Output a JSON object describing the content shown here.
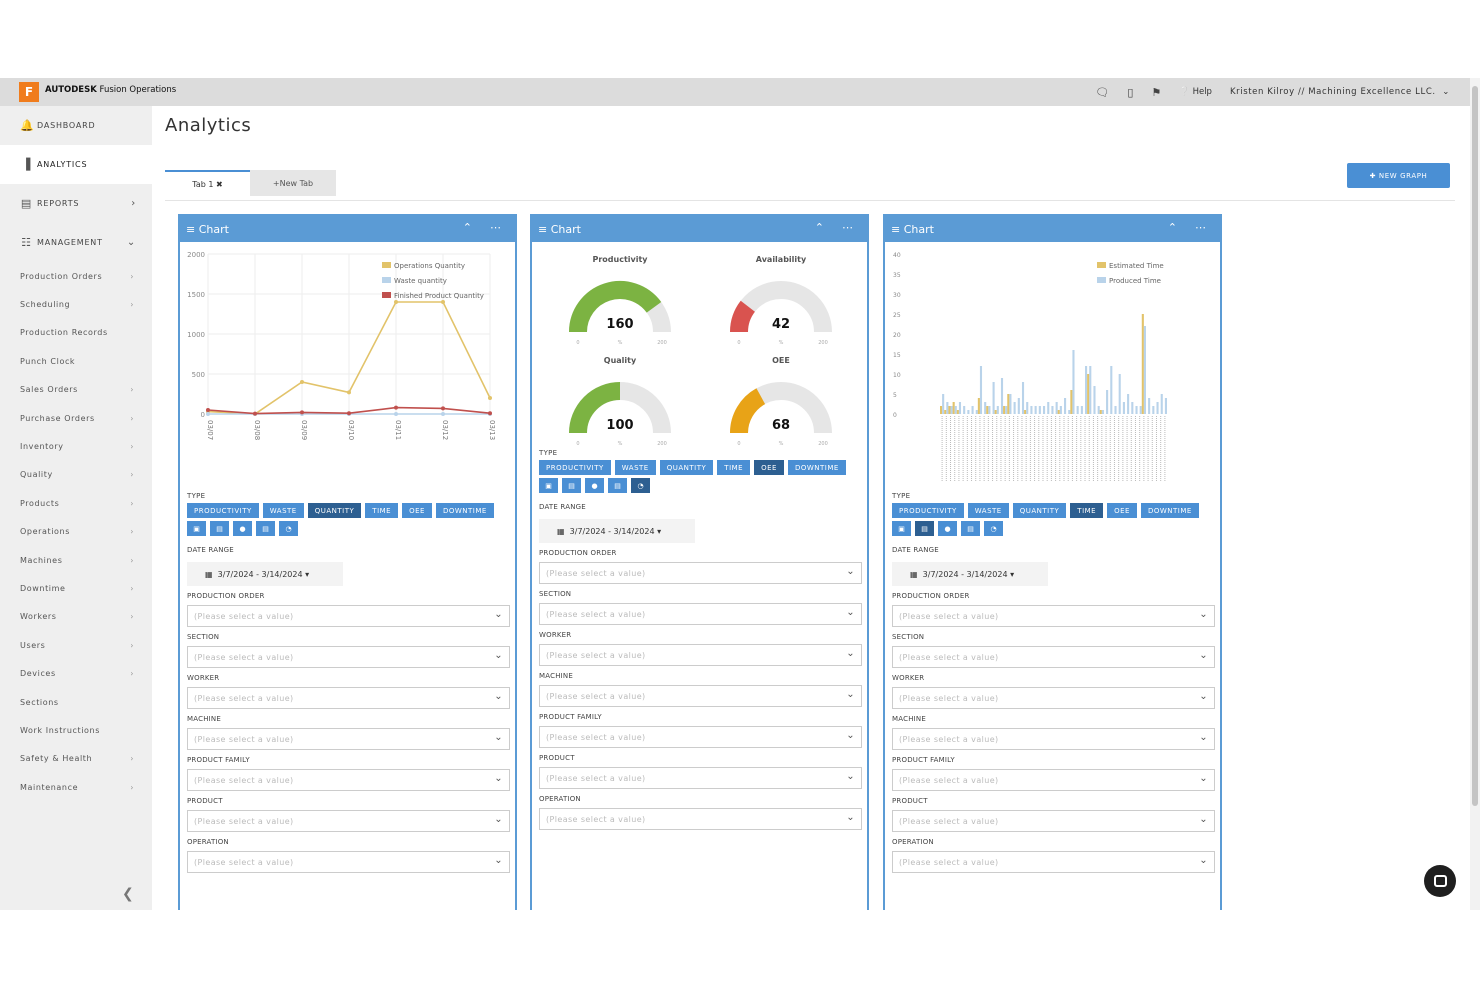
{
  "app": {
    "logo_letter": "F",
    "brand_bold": "AUTODESK",
    "brand_rest": " Fusion Operations",
    "help": "Help",
    "user": "Kristen Kilroy // Machining Excellence LLC."
  },
  "sidebar": {
    "main": [
      {
        "label": "DASHBOARD"
      },
      {
        "label": "ANALYTICS"
      },
      {
        "label": "REPORTS"
      },
      {
        "label": "MANAGEMENT"
      }
    ],
    "sub": [
      {
        "label": "Production Orders"
      },
      {
        "label": "Scheduling"
      },
      {
        "label": "Production Records"
      },
      {
        "label": "Punch Clock"
      },
      {
        "label": "Sales Orders"
      },
      {
        "label": "Purchase Orders"
      },
      {
        "label": "Inventory"
      },
      {
        "label": "Quality"
      },
      {
        "label": "Products"
      },
      {
        "label": "Operations"
      },
      {
        "label": "Machines"
      },
      {
        "label": "Downtime"
      },
      {
        "label": "Workers"
      },
      {
        "label": "Users"
      },
      {
        "label": "Devices"
      },
      {
        "label": "Sections"
      },
      {
        "label": "Work Instructions"
      },
      {
        "label": "Safety & Health"
      },
      {
        "label": "Maintenance"
      }
    ]
  },
  "page": {
    "title": "Analytics",
    "tab1": "Tab 1",
    "new_tab": "+New Tab",
    "new_graph": "NEW GRAPH"
  },
  "card": {
    "title": "Chart",
    "type_label": "TYPE",
    "type_buttons": [
      "PRODUCTIVITY",
      "WASTE",
      "QUANTITY",
      "TIME",
      "OEE",
      "DOWNTIME"
    ],
    "date_label": "DATE RANGE",
    "date_value": "3/7/2024 - 3/14/2024",
    "placeholder": "(Please select a value)",
    "fields": [
      "PRODUCTION ORDER",
      "SECTION",
      "WORKER",
      "MACHINE",
      "PRODUCT FAMILY",
      "PRODUCT",
      "OPERATION"
    ]
  },
  "chart_data": [
    {
      "type": "line",
      "x": [
        "03/07",
        "03/08",
        "03/09",
        "03/10",
        "03/11",
        "03/12",
        "03/13"
      ],
      "ylim": [
        0,
        2000
      ],
      "yticks": [
        0,
        500,
        1000,
        1500,
        2000
      ],
      "series": [
        {
          "name": "Operations Quantity",
          "color": "#e2c36a",
          "values": [
            30,
            0,
            400,
            270,
            1400,
            1400,
            200
          ]
        },
        {
          "name": "Waste quantity",
          "color": "#b9d3ea",
          "values": [
            0,
            0,
            0,
            0,
            0,
            0,
            0
          ]
        },
        {
          "name": "Finished Product Quantity",
          "color": "#c0504d",
          "values": [
            50,
            5,
            20,
            10,
            80,
            70,
            10
          ]
        }
      ],
      "legend": "top-right"
    },
    {
      "type": "gauge",
      "gauges": [
        {
          "title": "Productivity",
          "value": 160,
          "min": 0,
          "max": 200,
          "unit": "%",
          "color": "#7cb342"
        },
        {
          "title": "Availability",
          "value": 42,
          "min": 0,
          "max": 200,
          "unit": "%",
          "color": "#d9534f"
        },
        {
          "title": "Quality",
          "value": 100,
          "min": 0,
          "max": 200,
          "unit": "%",
          "color": "#7cb342"
        },
        {
          "title": "OEE",
          "value": 68,
          "min": 0,
          "max": 200,
          "unit": "%",
          "color": "#e8a317"
        }
      ]
    },
    {
      "type": "bar",
      "ylim": [
        0,
        40
      ],
      "yticks": [
        0,
        5,
        10,
        15,
        20,
        25,
        30,
        35,
        40
      ],
      "legend": "top-right",
      "series": [
        {
          "name": "Estimated Time",
          "color": "#e2c36a",
          "values": [
            2,
            1,
            2,
            3,
            1,
            0,
            0,
            0,
            0,
            4,
            0,
            2,
            0,
            1,
            0,
            2,
            5,
            0,
            0,
            0,
            1,
            0,
            0,
            0,
            0,
            0,
            0,
            0,
            1,
            0,
            0,
            6,
            0,
            0,
            0,
            10,
            0,
            0,
            1,
            0,
            0,
            0,
            0,
            0,
            0,
            0,
            0,
            0,
            25,
            0,
            0,
            0,
            0,
            0
          ]
        },
        {
          "name": "Produced Time",
          "color": "#b9d3ea",
          "values": [
            5,
            3,
            2,
            2,
            3,
            2,
            1,
            2,
            1,
            12,
            3,
            2,
            8,
            2,
            9,
            2,
            5,
            3,
            4,
            8,
            3,
            2,
            2,
            2,
            2,
            3,
            2,
            3,
            2,
            4,
            1,
            16,
            2,
            2,
            12,
            12,
            7,
            2,
            1,
            6,
            12,
            2,
            10,
            3,
            5,
            3,
            2,
            2,
            22,
            4,
            2,
            3,
            5,
            4
          ]
        }
      ]
    }
  ]
}
